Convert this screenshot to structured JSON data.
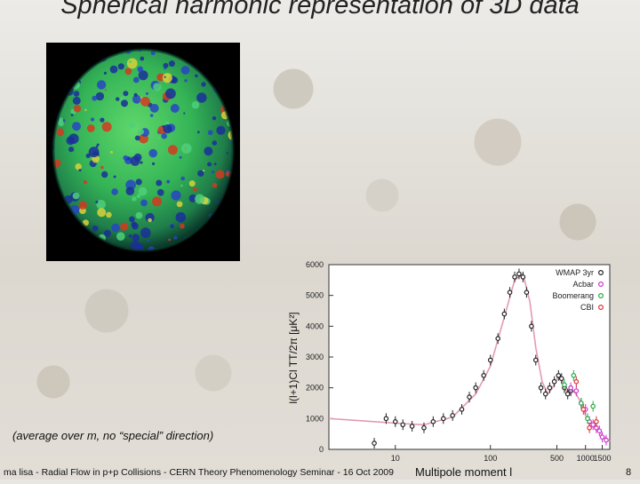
{
  "slide": {
    "title": "Spherical harmonic representation of 3D data",
    "caption": "(average over m,  no “special” direction)",
    "footer": "ma lisa - Radial Flow in p+p Collisions -  CERN Theory Phenomenology Seminar  - 16 Oct 2009",
    "page_number": "8"
  },
  "chart_data": {
    "type": "scatter",
    "xlabel": "Multipole moment  l",
    "ylabel": "l(l+1)Cl TT/2π [μK²]",
    "x_scale": "log",
    "xlim": [
      2,
      1800
    ],
    "ylim": [
      0,
      6000
    ],
    "x_ticks": [
      10,
      100,
      500,
      1000,
      1500
    ],
    "y_ticks": [
      0,
      1000,
      2000,
      3000,
      4000,
      5000,
      6000
    ],
    "legend_position": "top-right",
    "series": [
      {
        "name": "WMAP 3yr",
        "color": "#222222",
        "x": [
          6,
          8,
          10,
          12,
          15,
          20,
          25,
          32,
          40,
          50,
          60,
          70,
          85,
          100,
          120,
          140,
          160,
          180,
          200,
          220,
          240,
          270,
          300,
          340,
          380,
          420,
          470,
          520,
          560,
          600,
          650,
          700
        ],
        "y": [
          200,
          1000,
          900,
          800,
          750,
          700,
          900,
          1000,
          1100,
          1300,
          1700,
          2000,
          2400,
          2900,
          3600,
          4400,
          5100,
          5600,
          5700,
          5600,
          5100,
          4000,
          2900,
          2000,
          1800,
          2000,
          2200,
          2400,
          2300,
          2000,
          1800,
          1900
        ]
      },
      {
        "name": "Acbar",
        "color": "#cc33cc",
        "x": [
          700,
          800,
          900,
          1000,
          1100,
          1200,
          1300,
          1400,
          1500,
          1650
        ],
        "y": [
          2000,
          1900,
          1500,
          1300,
          900,
          800,
          700,
          600,
          400,
          300
        ]
      },
      {
        "name": "Boomerang",
        "color": "#22aa44",
        "x": [
          600,
          750,
          900,
          1050,
          1200
        ],
        "y": [
          2100,
          2400,
          1500,
          1000,
          1400
        ]
      },
      {
        "name": "CBI",
        "color": "#dd3333",
        "x": [
          800,
          950,
          1100,
          1300
        ],
        "y": [
          2200,
          1300,
          700,
          900
        ]
      }
    ],
    "fit_curve": {
      "color": "#e39bb0",
      "x": [
        2,
        6,
        10,
        20,
        40,
        70,
        100,
        140,
        180,
        220,
        260,
        300,
        350,
        400,
        450,
        520,
        560,
        620,
        700,
        800,
        900,
        1000,
        1100,
        1300,
        1500,
        1800
      ],
      "y": [
        1000,
        900,
        850,
        800,
        1050,
        1800,
        2700,
        4300,
        5500,
        5700,
        4800,
        3300,
        2200,
        1800,
        2000,
        2400,
        2300,
        1900,
        1950,
        1800,
        1500,
        1100,
        900,
        700,
        450,
        250
      ]
    }
  }
}
